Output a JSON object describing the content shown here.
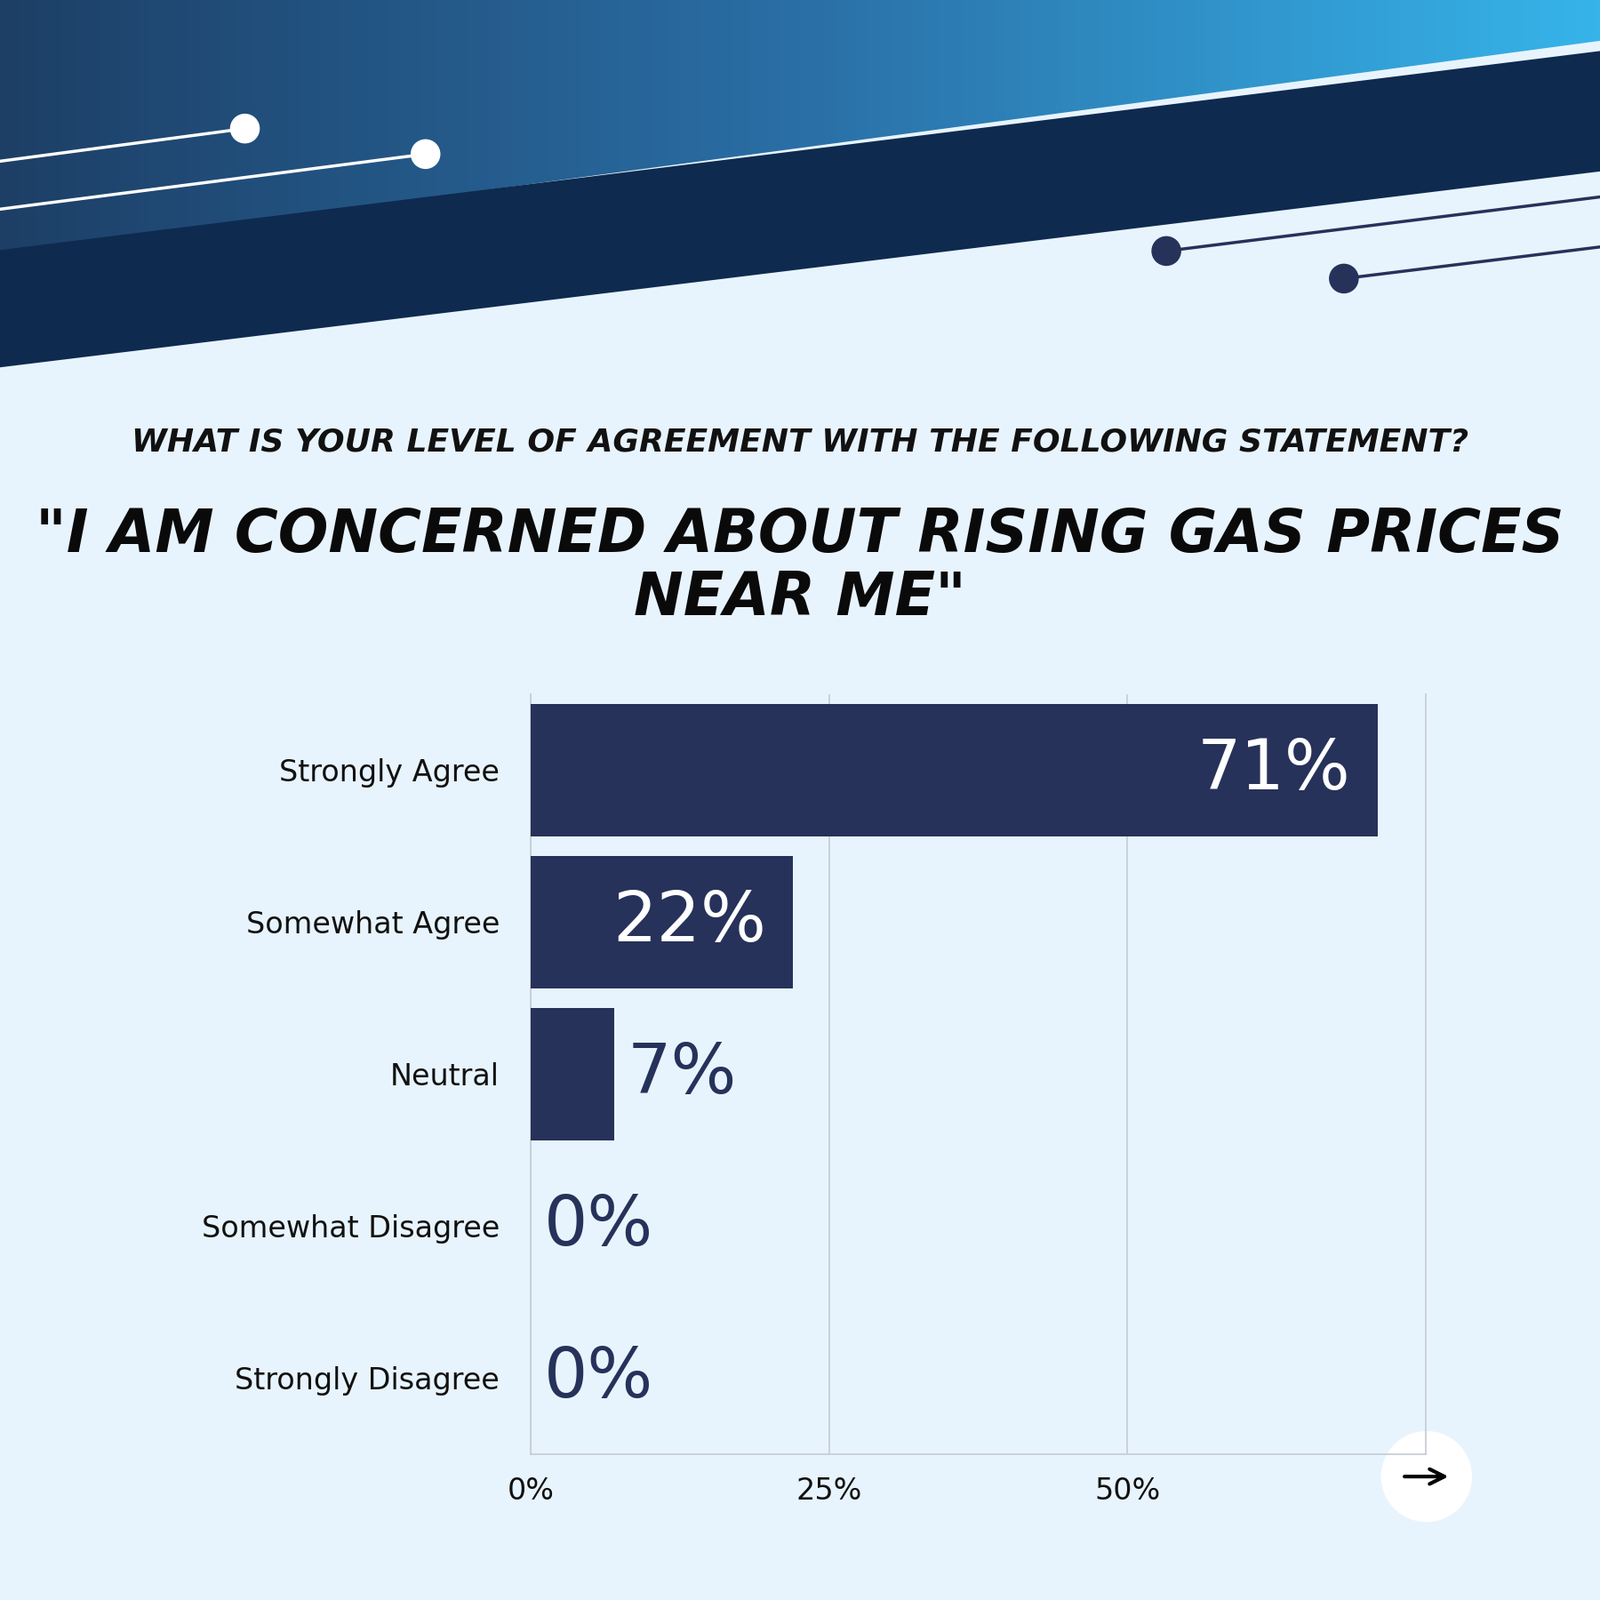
{
  "chart_data": {
    "type": "bar",
    "orientation": "horizontal",
    "title": "WHAT IS YOUR LEVEL OF AGREEMENT WITH THE FOLLOWING STATEMENT?",
    "subtitle": "\"I AM CONCERNED ABOUT RISING GAS PRICES NEAR ME\"",
    "categories": [
      "Strongly Agree",
      "Somewhat Agree",
      "Neutral",
      "Somewhat Disagree",
      "Strongly Disagree"
    ],
    "values": [
      71,
      22,
      7,
      0,
      0
    ],
    "value_labels": [
      "71%",
      "22%",
      "7%",
      "0%",
      "0%"
    ],
    "data_labels": true,
    "color": "#26325a",
    "xlim": [
      0,
      75
    ],
    "xticks": [
      {
        "value": 0,
        "label": "0%"
      },
      {
        "value": 25,
        "label": "25%"
      },
      {
        "value": 50,
        "label": "50%"
      }
    ],
    "grid": true
  }
}
